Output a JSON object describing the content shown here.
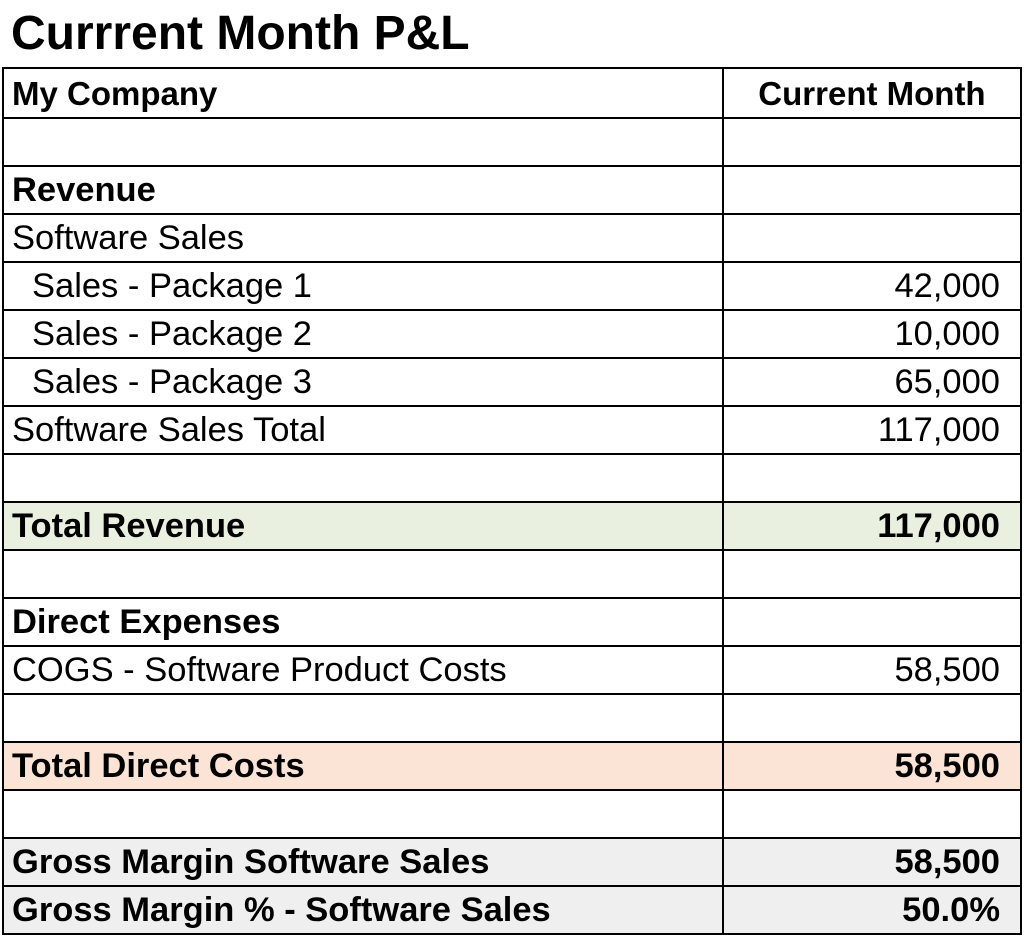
{
  "title": "Currrent Month P&L",
  "colors": {
    "total_revenue_fill": "#e9f0e0",
    "total_direct_costs_fill": "#fbe3d6",
    "gross_margin_fill": "#efefef",
    "border": "#000000"
  },
  "table": {
    "header": {
      "label": "My Company",
      "value": "Current Month"
    },
    "rows": [
      {
        "label": "",
        "value": ""
      },
      {
        "label": "Revenue",
        "value": ""
      },
      {
        "label": "Software Sales",
        "value": ""
      },
      {
        "label": "Sales - Package 1",
        "value": "42,000"
      },
      {
        "label": "Sales - Package 2",
        "value": "10,000"
      },
      {
        "label": "Sales - Package 3",
        "value": "65,000"
      },
      {
        "label": "Software Sales Total",
        "value": "117,000"
      },
      {
        "label": "",
        "value": ""
      },
      {
        "label": "Total Revenue",
        "value": "117,000"
      },
      {
        "label": "",
        "value": ""
      },
      {
        "label": "Direct Expenses",
        "value": ""
      },
      {
        "label": "COGS - Software Product Costs",
        "value": "58,500"
      },
      {
        "label": "",
        "value": ""
      },
      {
        "label": "Total Direct Costs",
        "value": "58,500"
      },
      {
        "label": "",
        "value": ""
      },
      {
        "label": "Gross Margin Software Sales",
        "value": "58,500"
      },
      {
        "label": "Gross Margin % - Software Sales",
        "value": "50.0%"
      }
    ]
  }
}
